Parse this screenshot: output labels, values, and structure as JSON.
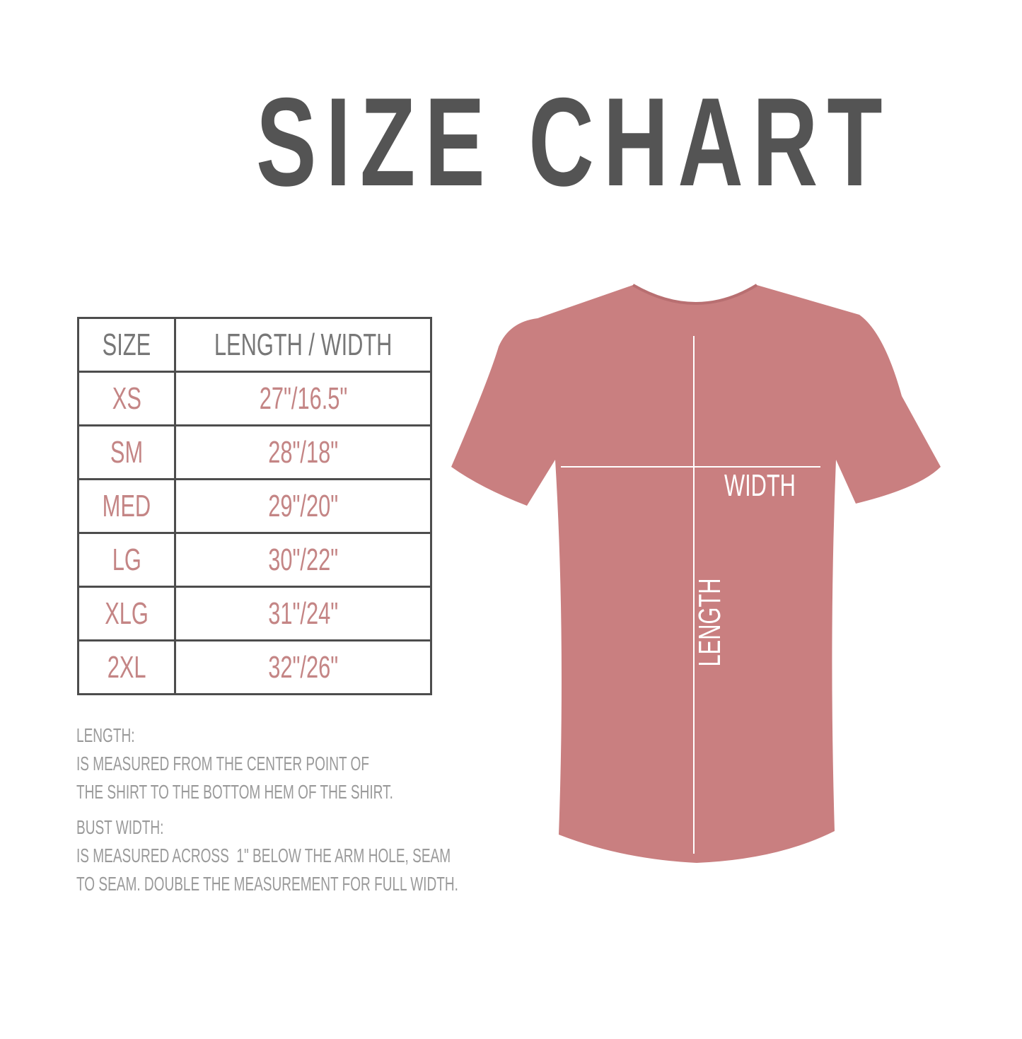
{
  "title": "SIZE CHART",
  "table": {
    "headers": [
      "SIZE",
      "LENGTH / WIDTH"
    ],
    "rows": [
      {
        "size": "XS",
        "measure": "27\"/16.5\""
      },
      {
        "size": "SM",
        "measure": "28\"/18\""
      },
      {
        "size": "MED",
        "measure": "29\"/20\""
      },
      {
        "size": "LG",
        "measure": "30\"/22\""
      },
      {
        "size": "XLG",
        "measure": "31\"/24\""
      },
      {
        "size": "2XL",
        "measure": "32\"/26\""
      }
    ]
  },
  "notes": {
    "length_heading": "LENGTH:",
    "length_line1": "IS MEASURED FROM THE CENTER POINT OF",
    "length_line2": "THE SHIRT TO THE BOTTOM HEM OF THE SHIRT.",
    "width_heading": "BUST WIDTH:",
    "width_line1": "IS MEASURED ACROSS  1\" BELOW THE ARM HOLE, SEAM",
    "width_line2": "TO SEAM. DOUBLE THE MEASUREMENT FOR FULL WIDTH."
  },
  "diagram": {
    "width_label": "WIDTH",
    "length_label": "LENGTH",
    "shirt_color": "#c97f80"
  }
}
